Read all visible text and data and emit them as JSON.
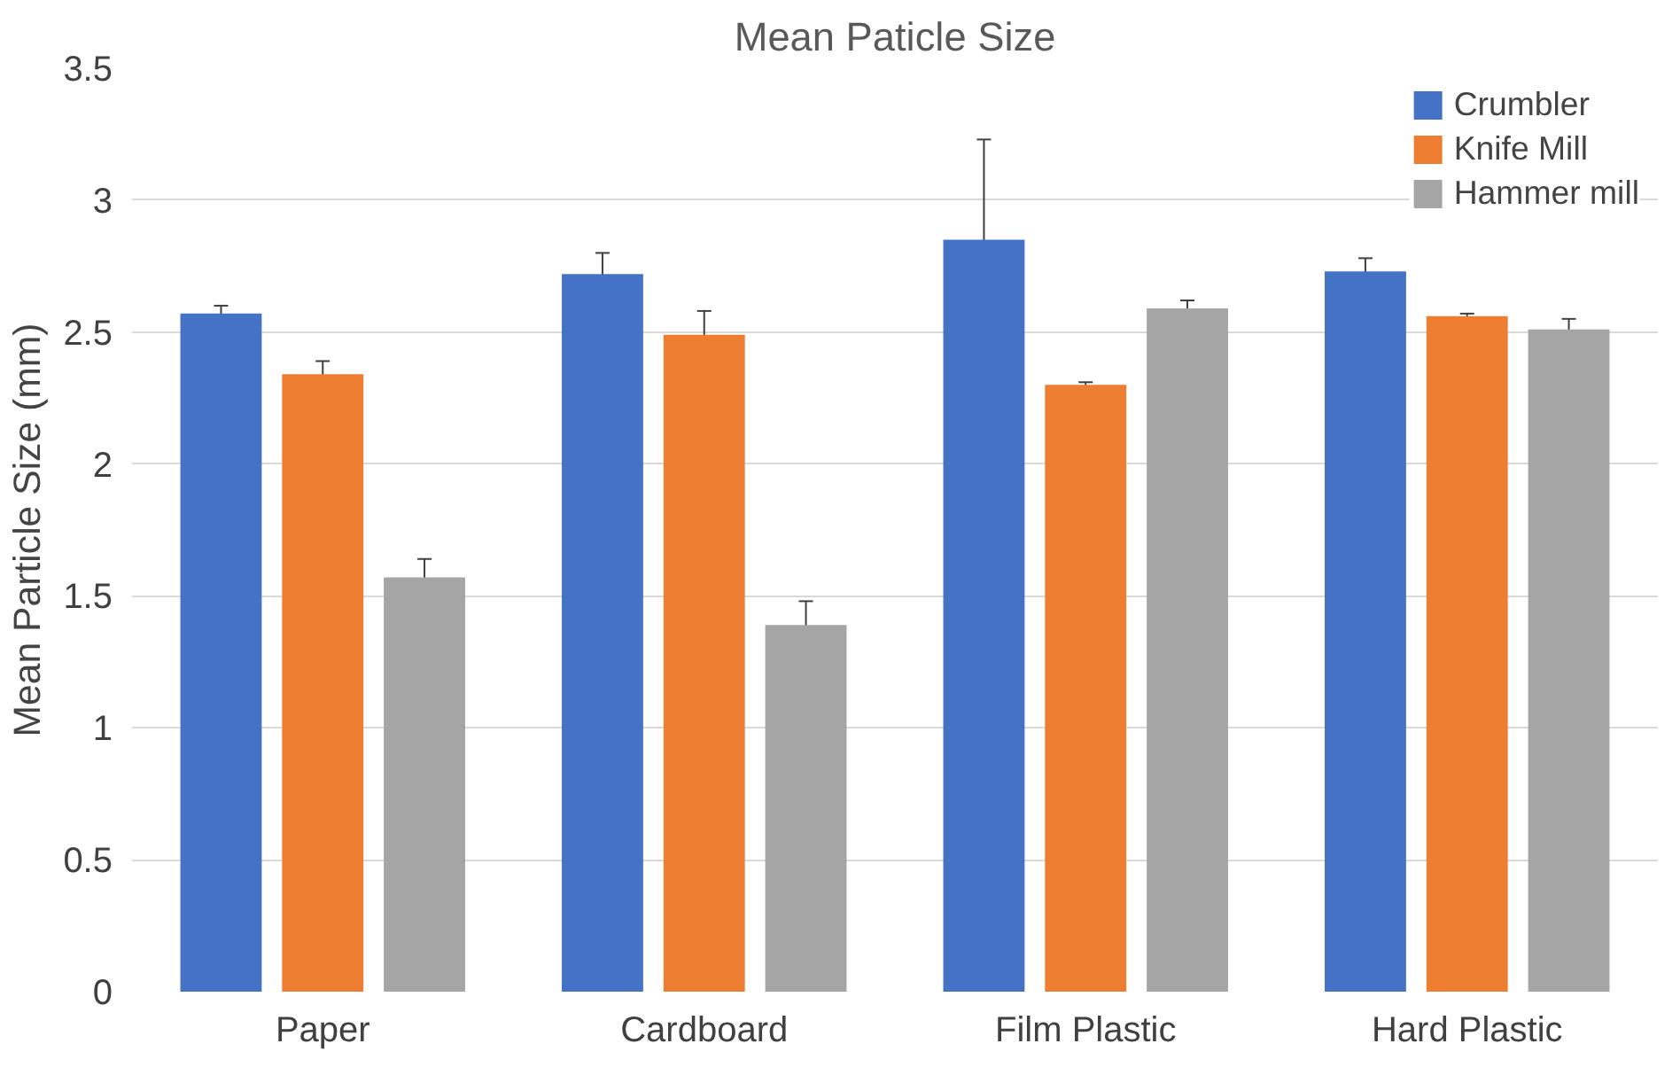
{
  "chart_data": {
    "type": "bar",
    "title": "Mean Paticle Size",
    "ylabel": "Mean Particle Size (mm)",
    "categories": [
      "Paper",
      "Cardboard",
      "Film Plastic",
      "Hard Plastic"
    ],
    "series": [
      {
        "name": "Crumbler",
        "color": "#4472c4",
        "values": [
          2.57,
          2.72,
          2.85,
          2.73
        ],
        "errors": [
          0.03,
          0.08,
          0.38,
          0.05
        ]
      },
      {
        "name": "Knife Mill",
        "color": "#ed7d31",
        "values": [
          2.34,
          2.49,
          2.3,
          2.56
        ],
        "errors": [
          0.05,
          0.09,
          0.01,
          0.01
        ]
      },
      {
        "name": "Hammer mill",
        "color": "#a5a5a5",
        "values": [
          1.57,
          1.39,
          2.59,
          2.51
        ],
        "errors": [
          0.07,
          0.09,
          0.03,
          0.04
        ]
      }
    ],
    "ylim": [
      0,
      3.5
    ],
    "yticks": [
      0,
      0.5,
      1,
      1.5,
      2,
      2.5,
      3,
      3.5
    ],
    "grid": "y",
    "legend": "top right"
  }
}
